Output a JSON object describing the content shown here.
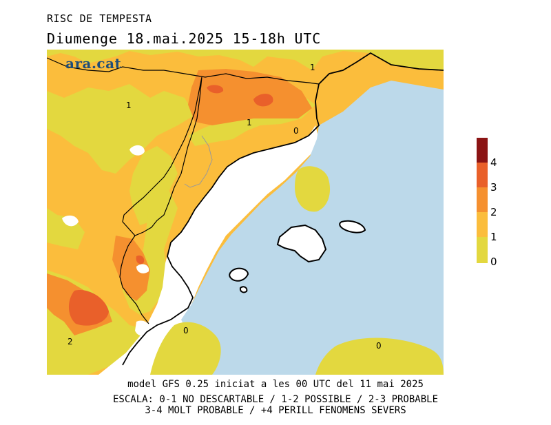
{
  "title": "RISC DE TEMPESTA",
  "subtitle": "Diumenge  18.mai.2025  15-18h  UTC",
  "brand": "ara.cat",
  "model_line": "model GFS 0.25 iniciat a les 00 UTC del 11 mai 2025",
  "scale_line1": "ESCALA: 0-1 NO DESCARTABLE / 1-2 POSSIBLE / 2-3 PROBABLE",
  "scale_line2": "3-4 MOLT PROBABLE / +4 PERILL FENOMENS SEVERS",
  "legend": {
    "ticks": [
      "0",
      "1",
      "2",
      "3",
      "4"
    ],
    "colors": {
      "level_0": "#e3d83f",
      "level_1": "#fbbd3c",
      "level_2": "#f5902f",
      "level_3": "#e9602a",
      "level_4": "#8b1414"
    }
  },
  "map": {
    "sea_color": "#bcd9ea",
    "land_low_color": "#ffffff",
    "contour_labels": {
      "north_1": "1",
      "northwest_1": "1",
      "center_1": "1",
      "coast_0": "0",
      "south_0": "0",
      "sea_0": "0",
      "southwest_2": "2"
    }
  }
}
